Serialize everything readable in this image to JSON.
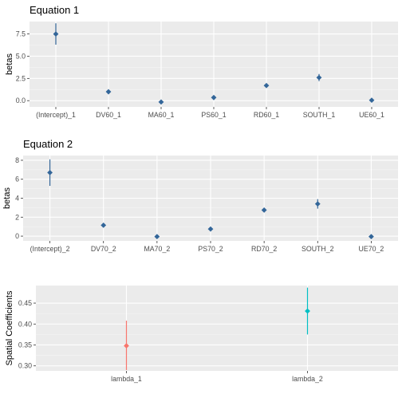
{
  "chart_data": [
    {
      "type": "scatter",
      "title": "Equation  1",
      "xlabel": "",
      "ylabel": "betas",
      "categories": [
        "(Intercept)_1",
        "DV60_1",
        "MA60_1",
        "PS60_1",
        "RD60_1",
        "SOUTH_1",
        "UE60_1"
      ],
      "values": [
        7.5,
        1.0,
        -0.15,
        0.35,
        1.7,
        2.6,
        0.05
      ],
      "lower": [
        6.3,
        0.85,
        -0.3,
        0.2,
        1.5,
        2.2,
        -0.1
      ],
      "upper": [
        8.7,
        1.15,
        0.0,
        0.5,
        1.9,
        3.0,
        0.2
      ],
      "yticks": [
        0.0,
        2.5,
        5.0,
        7.5
      ],
      "ytick_labels": [
        "0.0",
        "2.5",
        "5.0",
        "7.5"
      ],
      "ylim": [
        -0.7,
        8.9
      ],
      "color": "#336699",
      "grid": true
    },
    {
      "type": "scatter",
      "title": "Equation  2",
      "xlabel": "",
      "ylabel": "betas",
      "categories": [
        "(Intercept)_2",
        "DV70_2",
        "MA70_2",
        "PS70_2",
        "RD70_2",
        "SOUTH_2",
        "UE70_2"
      ],
      "values": [
        6.7,
        1.15,
        -0.05,
        0.75,
        2.75,
        3.4,
        -0.05
      ],
      "lower": [
        5.3,
        1.0,
        -0.2,
        0.6,
        2.55,
        2.9,
        -0.2
      ],
      "upper": [
        8.1,
        1.3,
        0.1,
        0.9,
        2.95,
        3.9,
        0.1
      ],
      "yticks": [
        0,
        2,
        4,
        6,
        8
      ],
      "ytick_labels": [
        "0",
        "2",
        "4",
        "6",
        "8"
      ],
      "ylim": [
        -0.5,
        8.5
      ],
      "color": "#336699",
      "grid": true
    },
    {
      "type": "scatter",
      "title": "",
      "xlabel": "",
      "ylabel": "Spatial Coefficients",
      "categories": [
        "lambda_1",
        "lambda_2"
      ],
      "values": [
        0.348,
        0.431
      ],
      "lower": [
        0.29,
        0.375
      ],
      "upper": [
        0.408,
        0.487
      ],
      "yticks": [
        0.3,
        0.35,
        0.4,
        0.45
      ],
      "ytick_labels": [
        "0.30",
        "0.35",
        "0.40",
        "0.45"
      ],
      "ylim": [
        0.288,
        0.492
      ],
      "colors": [
        "#F8766D",
        "#00BFC4"
      ],
      "grid": true
    }
  ]
}
